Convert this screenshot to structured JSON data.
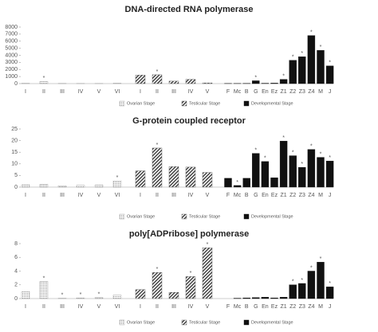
{
  "chart_data": [
    {
      "type": "bar",
      "title": "DNA-directed RNA polymerase",
      "marker": "*",
      "ylim": [
        0,
        8000
      ],
      "yticks": [
        0,
        1000,
        2000,
        3000,
        4000,
        5000,
        6000,
        7000,
        8000
      ],
      "series": [
        {
          "name": "Ovarian Stage",
          "color": "#9a9a9a",
          "pattern": "dots",
          "categories": [
            "I",
            "II",
            "III",
            "IV",
            "V",
            "VI"
          ],
          "values": [
            50,
            300,
            30,
            20,
            20,
            60
          ],
          "significant": [
            1
          ]
        },
        {
          "name": "Testicular Stage",
          "color": "#555555",
          "pattern": "stripes",
          "categories": [
            "I",
            "II",
            "III",
            "IV",
            "V"
          ],
          "values": [
            1200,
            1250,
            350,
            600,
            100
          ],
          "significant": [
            1
          ]
        },
        {
          "name": "Developmental Stage",
          "color": "#111111",
          "pattern": "solid",
          "categories": [
            "F",
            "Mc",
            "B",
            "G",
            "En",
            "Ez",
            "Z1",
            "Z2",
            "Z3",
            "Z4",
            "M",
            "J"
          ],
          "values": [
            20,
            20,
            30,
            400,
            50,
            70,
            600,
            3300,
            3800,
            6800,
            4700,
            2500
          ],
          "significant": [
            3,
            6,
            7,
            8,
            9,
            10,
            11
          ]
        }
      ]
    },
    {
      "type": "bar",
      "title": "G-protein coupled receptor",
      "marker": "*",
      "ylim": [
        0,
        25
      ],
      "yticks": [
        0,
        5,
        10,
        15,
        20,
        25
      ],
      "series": [
        {
          "name": "Ovarian Stage",
          "color": "#9a9a9a",
          "pattern": "dots",
          "categories": [
            "I",
            "II",
            "III",
            "IV",
            "V",
            "VI"
          ],
          "values": [
            1,
            1.2,
            0.6,
            0.8,
            0.9,
            2.7
          ],
          "significant": [
            5
          ]
        },
        {
          "name": "Testicular Stage",
          "color": "#555555",
          "pattern": "stripes",
          "categories": [
            "I",
            "II",
            "III",
            "IV",
            "V"
          ],
          "values": [
            7,
            16.8,
            8.8,
            8.6,
            6.3
          ],
          "significant": [
            1
          ]
        },
        {
          "name": "Developmental Stage",
          "color": "#111111",
          "pattern": "solid",
          "categories": [
            "F",
            "Mc",
            "B",
            "G",
            "En",
            "Ez",
            "Z1",
            "Z2",
            "Z3",
            "Z4",
            "M",
            "J"
          ],
          "values": [
            3.8,
            0.7,
            3.8,
            14.5,
            11,
            4,
            19.8,
            13.5,
            8.5,
            16.2,
            12.8,
            11.2
          ],
          "significant": [
            1,
            3,
            4,
            6,
            7,
            8,
            9,
            10,
            11
          ]
        }
      ]
    },
    {
      "type": "bar",
      "title": "poly[ADPribose] polymerase",
      "marker": "*",
      "ylim": [
        0,
        8
      ],
      "yticks": [
        0,
        2,
        4,
        6,
        8
      ],
      "series": [
        {
          "name": "Ovarian Stage",
          "color": "#9a9a9a",
          "pattern": "dots",
          "categories": [
            "I",
            "II",
            "III",
            "IV",
            "V",
            "VI"
          ],
          "values": [
            1,
            2.5,
            0.05,
            0.1,
            0.15,
            0.5
          ],
          "significant": [
            1,
            2,
            3,
            4
          ]
        },
        {
          "name": "Testicular Stage",
          "color": "#555555",
          "pattern": "stripes",
          "categories": [
            "I",
            "II",
            "III",
            "IV",
            "V"
          ],
          "values": [
            1.3,
            3.8,
            0.9,
            3.2,
            7.4
          ],
          "significant": [
            1,
            3,
            4
          ]
        },
        {
          "name": "Developmental Stage",
          "color": "#111111",
          "pattern": "solid",
          "categories": [
            "F",
            "Mc",
            "B",
            "G",
            "En",
            "Ez",
            "Z1",
            "Z2",
            "Z3",
            "Z4",
            "M",
            "J"
          ],
          "values": [
            0,
            0.05,
            0.1,
            0.15,
            0.2,
            0.1,
            0.2,
            2,
            2.2,
            4,
            5.3,
            1.7
          ],
          "significant": [
            7,
            8,
            9,
            10,
            11
          ]
        }
      ]
    }
  ]
}
